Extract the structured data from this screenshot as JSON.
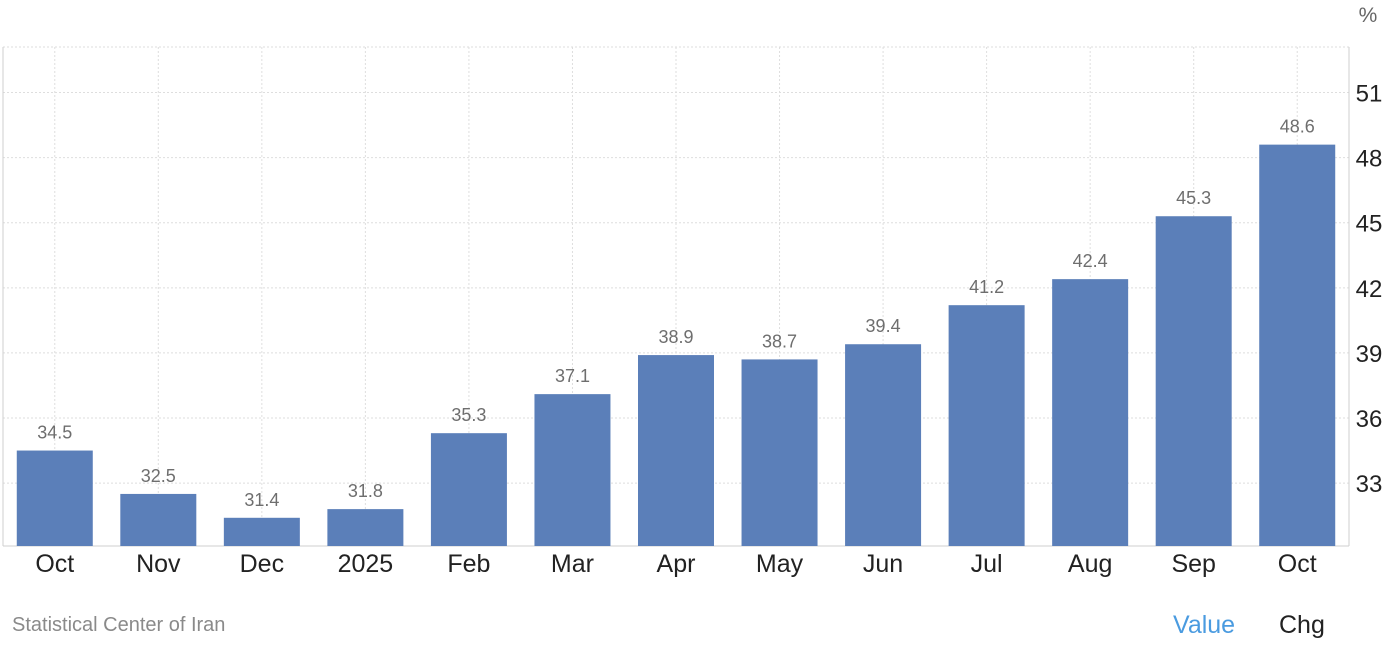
{
  "chart_data": {
    "type": "bar",
    "categories": [
      "Oct",
      "Nov",
      "Dec",
      "2025",
      "Feb",
      "Mar",
      "Apr",
      "May",
      "Jun",
      "Jul",
      "Aug",
      "Sep",
      "Oct"
    ],
    "values": [
      34.5,
      32.5,
      31.4,
      31.8,
      35.3,
      37.1,
      38.9,
      38.7,
      39.4,
      41.2,
      42.4,
      45.3,
      48.6
    ],
    "data_labels": [
      "34.5",
      "32.5",
      "31.4",
      "31.8",
      "35.3",
      "37.1",
      "38.9",
      "38.7",
      "39.4",
      "41.2",
      "42.4",
      "45.3",
      "48.6"
    ],
    "y_unit": "%",
    "y_ticks": [
      33,
      36,
      39,
      42,
      45,
      48,
      51
    ],
    "ylim": [
      30.1,
      53.1
    ],
    "y_axis_position": "right",
    "grid": true,
    "bar_color": "#5b7fb9"
  },
  "footer": {
    "source": "Statistical Center of Iran",
    "tabs": {
      "value_label": "Value",
      "chg_label": "Chg",
      "active": "Value",
      "active_color": "#4a9be0"
    }
  }
}
